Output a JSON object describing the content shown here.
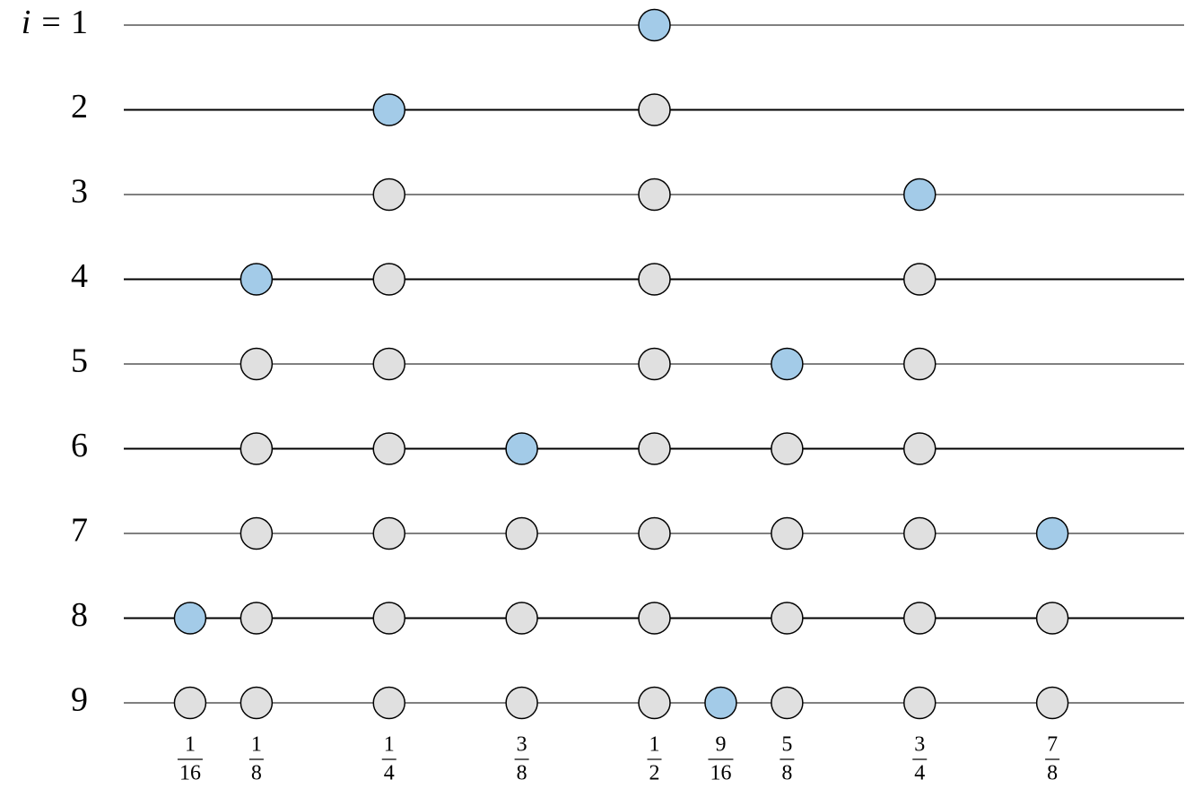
{
  "index_prefix": "i =",
  "xlim": [
    0,
    1
  ],
  "point_color": "#e0e0e0",
  "new_point_color": "#a3cbe8",
  "rows": [
    {
      "label": "1",
      "points": [],
      "new_point": 0.5
    },
    {
      "label": "2",
      "points": [
        0.5
      ],
      "new_point": 0.25
    },
    {
      "label": "3",
      "points": [
        0.25,
        0.5
      ],
      "new_point": 0.75
    },
    {
      "label": "4",
      "points": [
        0.25,
        0.5,
        0.75
      ],
      "new_point": 0.125
    },
    {
      "label": "5",
      "points": [
        0.125,
        0.25,
        0.5,
        0.75
      ],
      "new_point": 0.625
    },
    {
      "label": "6",
      "points": [
        0.125,
        0.25,
        0.5,
        0.625,
        0.75
      ],
      "new_point": 0.375
    },
    {
      "label": "7",
      "points": [
        0.125,
        0.25,
        0.375,
        0.5,
        0.625,
        0.75
      ],
      "new_point": 0.875
    },
    {
      "label": "8",
      "points": [
        0.125,
        0.25,
        0.375,
        0.5,
        0.625,
        0.75,
        0.875
      ],
      "new_point": 0.0625
    },
    {
      "label": "9",
      "points": [
        0.0625,
        0.125,
        0.25,
        0.375,
        0.5,
        0.625,
        0.75,
        0.875
      ],
      "new_point": 0.5625
    }
  ],
  "xticks": [
    {
      "value": 0.0625,
      "numerator": "1",
      "denominator": "16"
    },
    {
      "value": 0.125,
      "numerator": "1",
      "denominator": "8"
    },
    {
      "value": 0.25,
      "numerator": "1",
      "denominator": "4"
    },
    {
      "value": 0.375,
      "numerator": "3",
      "denominator": "8"
    },
    {
      "value": 0.5,
      "numerator": "1",
      "denominator": "2"
    },
    {
      "value": 0.5625,
      "numerator": "9",
      "denominator": "16"
    },
    {
      "value": 0.625,
      "numerator": "5",
      "denominator": "8"
    },
    {
      "value": 0.75,
      "numerator": "3",
      "denominator": "4"
    },
    {
      "value": 0.875,
      "numerator": "7",
      "denominator": "8"
    }
  ]
}
